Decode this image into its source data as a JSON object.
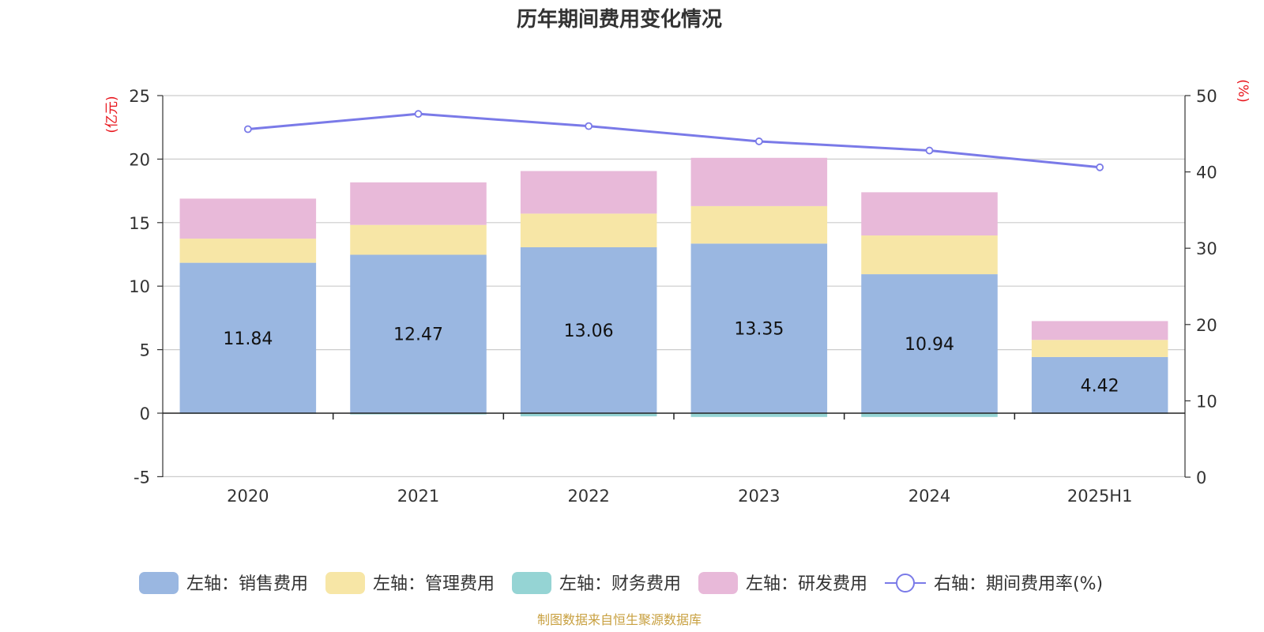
{
  "chart_data": {
    "type": "bar",
    "title": "历年期间费用变化情况",
    "categories": [
      "2020",
      "2021",
      "2022",
      "2023",
      "2024",
      "2025H1"
    ],
    "left_axis": {
      "unit_label": "(亿元)",
      "ylim": [
        -5,
        25
      ],
      "ticks": [
        -5,
        0,
        5,
        10,
        15,
        20,
        25
      ]
    },
    "right_axis": {
      "unit_label": "(%)",
      "ylim": [
        0,
        50
      ],
      "ticks": [
        0,
        10,
        20,
        30,
        40,
        50
      ]
    },
    "grid": true,
    "legend_position": "bottom",
    "series": [
      {
        "name": "左轴：销售费用",
        "type": "bar",
        "stack": "left",
        "color": "#9ab7e1",
        "values": [
          11.84,
          12.47,
          13.06,
          13.35,
          10.94,
          4.42
        ],
        "show_labels": true
      },
      {
        "name": "左轴：管理费用",
        "type": "bar",
        "stack": "left",
        "color": "#f7e6a6",
        "values": [
          1.9,
          2.35,
          2.65,
          2.95,
          3.05,
          1.35
        ]
      },
      {
        "name": "左轴：财务费用",
        "type": "bar",
        "stack": "left",
        "color": "#95d4d4",
        "values": [
          -0.05,
          -0.1,
          -0.25,
          -0.3,
          -0.3,
          -0.05
        ]
      },
      {
        "name": "左轴：研发费用",
        "type": "bar",
        "stack": "left",
        "color": "#e8b9d9",
        "values": [
          3.15,
          3.35,
          3.35,
          3.8,
          3.4,
          1.48
        ]
      },
      {
        "name": "右轴：期间费用率(%)",
        "type": "line",
        "axis": "right",
        "color": "#7a7ae8",
        "values": [
          45.6,
          47.6,
          46.0,
          44.0,
          42.8,
          40.6
        ]
      }
    ]
  },
  "source_note": "制图数据来自恒生聚源数据库"
}
